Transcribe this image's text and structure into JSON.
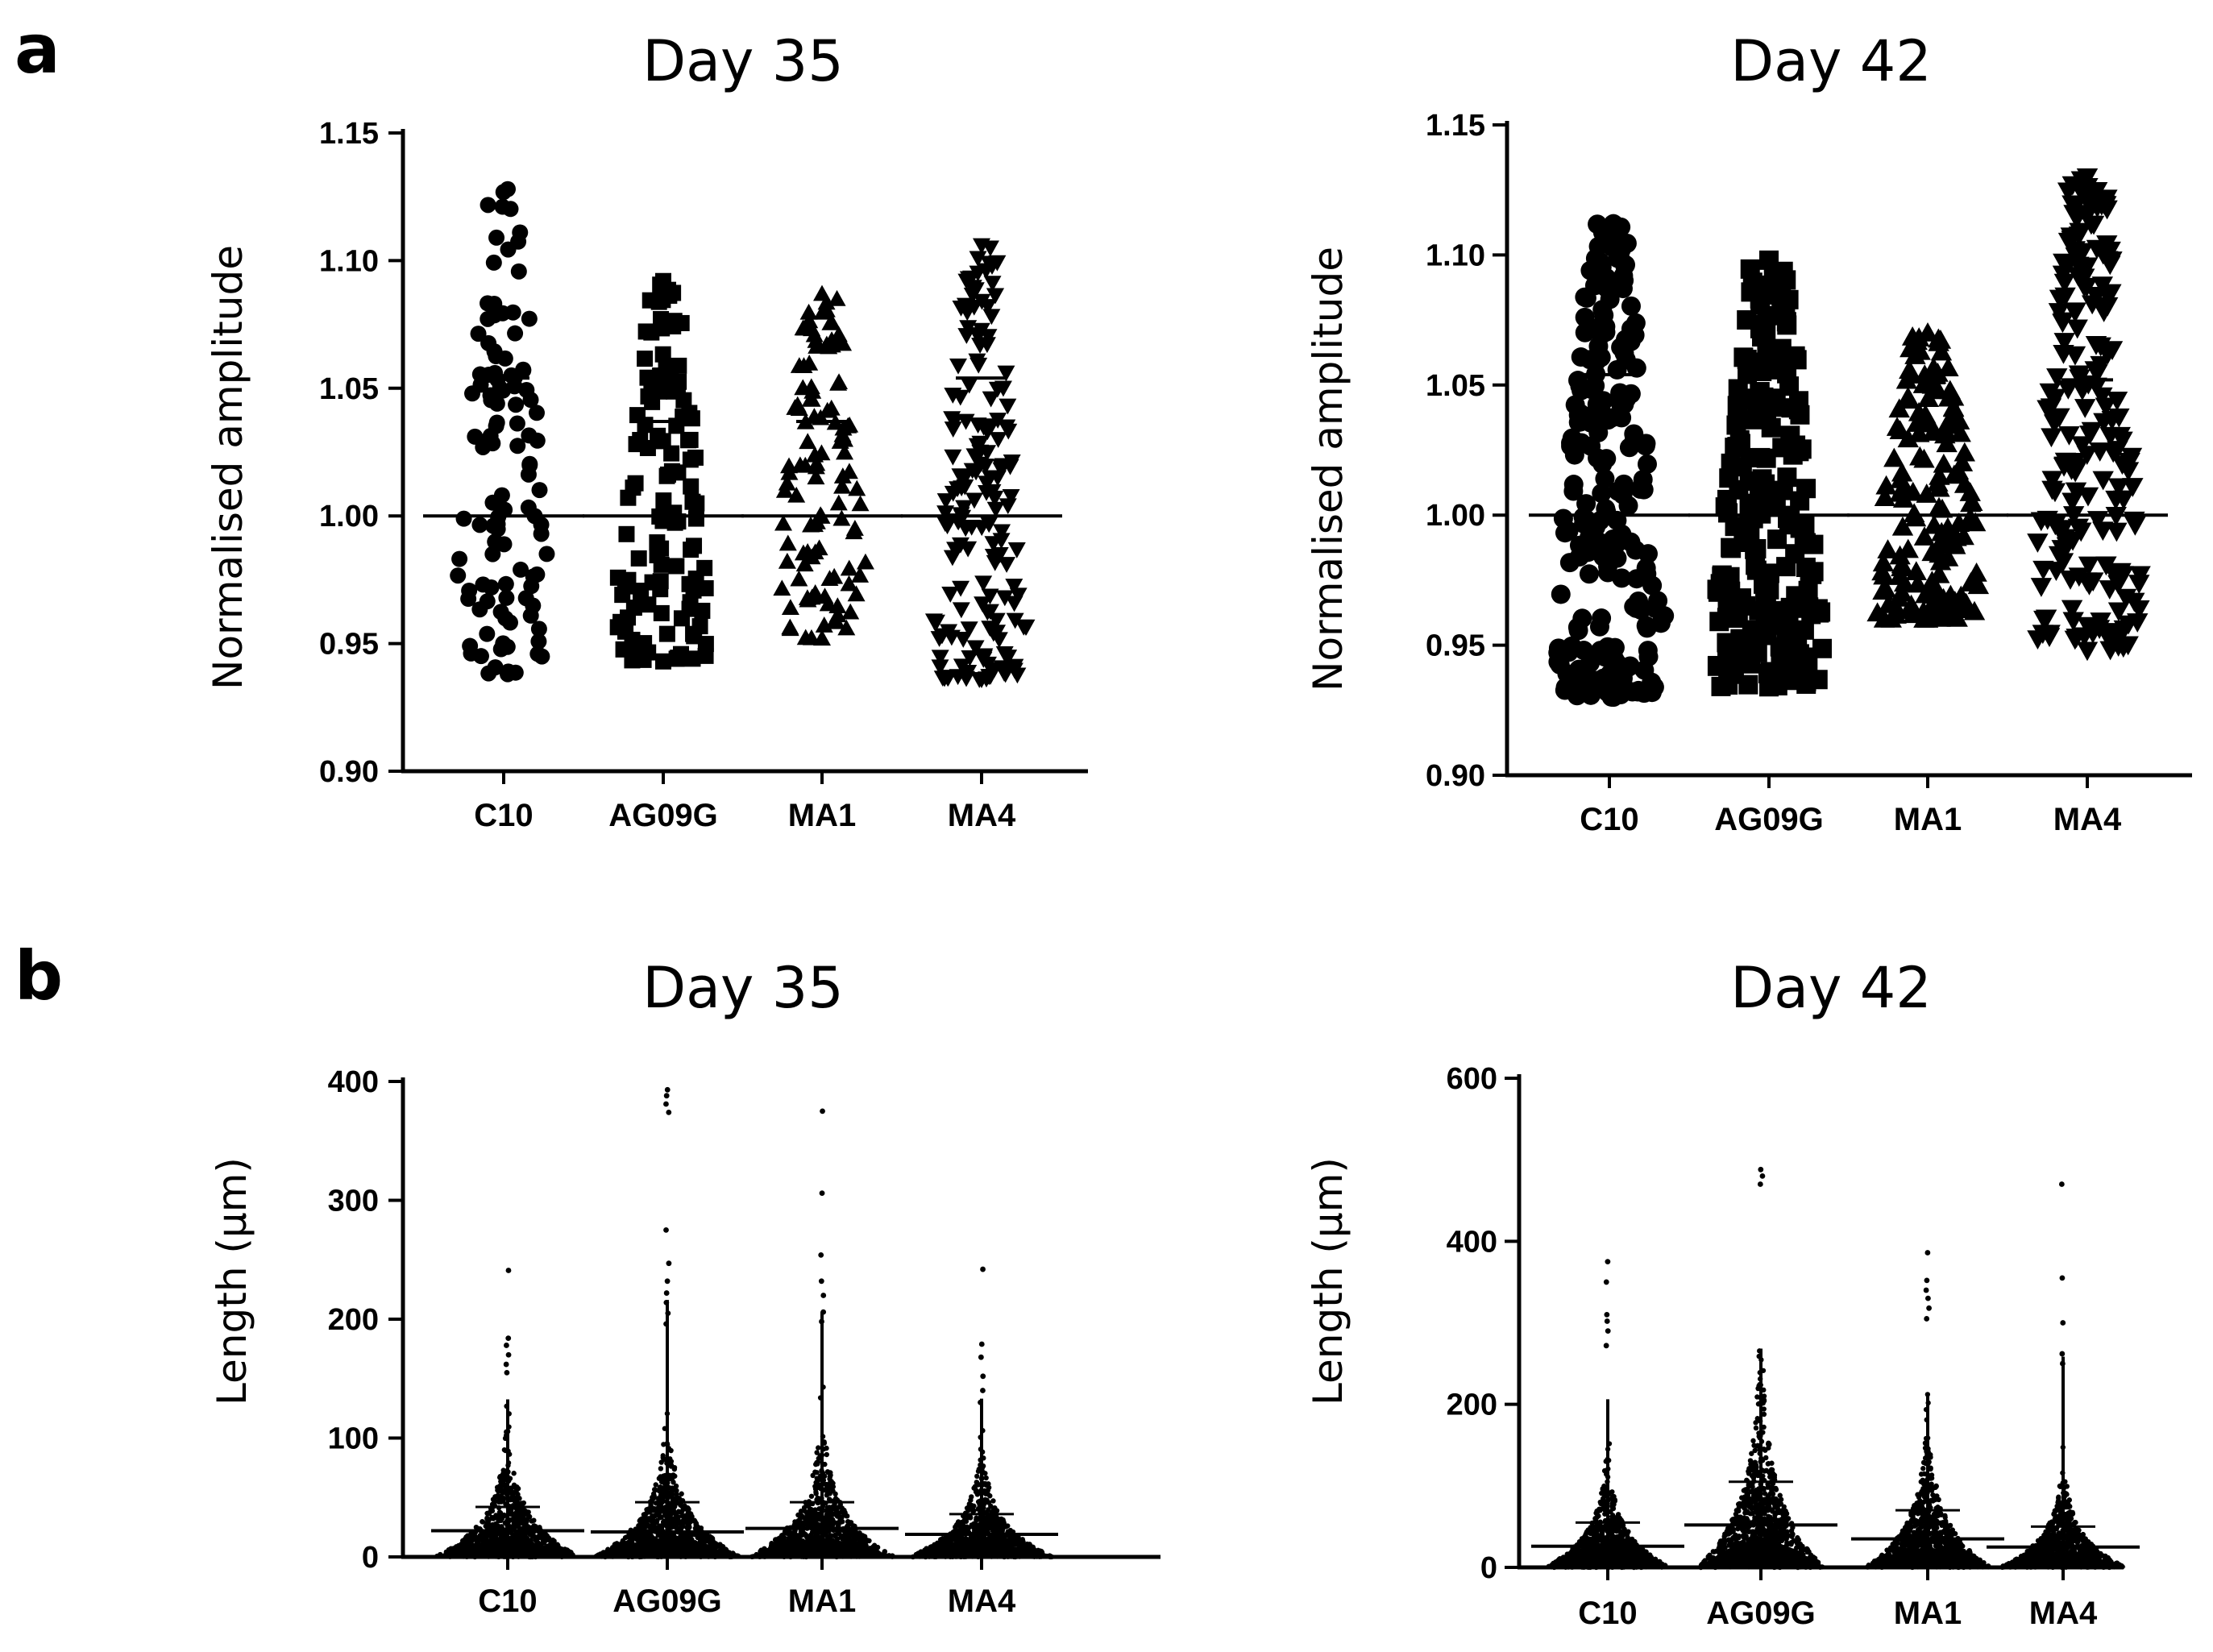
{
  "panel_labels": [
    "a",
    "b"
  ],
  "chart_data": [
    {
      "type": "scatter",
      "panel": "a",
      "title": "Day 35",
      "xlabel": "",
      "ylabel": "Normalised amplitude",
      "ylim": [
        0.9,
        1.15
      ],
      "yticks": [
        0.9,
        0.95,
        1.0,
        1.05,
        1.1,
        1.15
      ],
      "ytick_labels": [
        "0.90",
        "0.95",
        "1.00",
        "1.05",
        "1.10",
        "1.15"
      ],
      "categories": [
        "C10",
        "AG09G",
        "MA1",
        "MA4"
      ],
      "markers": [
        "circle",
        "square",
        "triangle-up",
        "triangle-down"
      ],
      "series": [
        {
          "name": "C10",
          "mean": 1.0,
          "sd_upper": 1.054,
          "min": 0.938,
          "max": 1.128,
          "n": 110
        },
        {
          "name": "AG09G",
          "mean": 1.0,
          "sd_upper": 1.037,
          "min": 0.943,
          "max": 1.092,
          "n": 120
        },
        {
          "name": "MA1",
          "mean": 1.0,
          "sd_upper": 1.037,
          "min": 0.952,
          "max": 1.087,
          "n": 110
        },
        {
          "name": "MA4",
          "mean": 1.0,
          "sd_upper": 1.054,
          "min": 0.936,
          "max": 1.106,
          "n": 170
        }
      ]
    },
    {
      "type": "scatter",
      "panel": "a",
      "title": "Day 42",
      "xlabel": "",
      "ylabel": "Normalised amplitude",
      "ylim": [
        0.9,
        1.15
      ],
      "yticks": [
        0.9,
        0.95,
        1.0,
        1.05,
        1.1,
        1.15
      ],
      "ytick_labels": [
        "0.90",
        "0.95",
        "1.00",
        "1.05",
        "1.10",
        "1.15"
      ],
      "categories": [
        "C10",
        "AG09G",
        "MA1",
        "MA4"
      ],
      "markers": [
        "circle",
        "square",
        "triangle-up",
        "triangle-down"
      ],
      "series": [
        {
          "name": "C10",
          "mean": 1.0,
          "sd_upper": 1.054,
          "min": 0.93,
          "max": 1.112,
          "n": 220
        },
        {
          "name": "AG09G",
          "mean": 1.0,
          "sd_upper": 1.048,
          "min": 0.934,
          "max": 1.098,
          "n": 220
        },
        {
          "name": "MA1",
          "mean": 1.0,
          "sd_upper": 1.03,
          "min": 0.96,
          "max": 1.07,
          "n": 160
        },
        {
          "name": "MA4",
          "mean": 1.0,
          "sd_upper": 1.052,
          "min": 0.948,
          "max": 1.13,
          "n": 200
        }
      ]
    },
    {
      "type": "scatter",
      "panel": "b",
      "title": "Day 35",
      "xlabel": "",
      "ylabel": "Length (μm)",
      "ylim": [
        0,
        400
      ],
      "yticks": [
        0,
        100,
        200,
        300,
        400
      ],
      "ytick_labels": [
        "0",
        "100",
        "200",
        "300",
        "400"
      ],
      "categories": [
        "C10",
        "AG09G",
        "MA1",
        "MA4"
      ],
      "series": [
        {
          "name": "C10",
          "mean": 22,
          "sd_upper": 42,
          "max": 241,
          "outliers": [
            241,
            184,
            178,
            170,
            162,
            155
          ]
        },
        {
          "name": "AG09G",
          "mean": 21,
          "sd_upper": 46,
          "max": 393,
          "outliers": [
            393,
            388,
            381,
            374,
            275,
            247,
            232,
            222,
            214,
            205,
            196
          ]
        },
        {
          "name": "MA1",
          "mean": 24,
          "sd_upper": 46,
          "max": 375,
          "outliers": [
            375,
            306,
            254,
            232,
            220,
            206,
            198
          ]
        },
        {
          "name": "MA4",
          "mean": 19,
          "sd_upper": 36,
          "max": 242,
          "outliers": [
            242,
            179,
            168,
            152,
            140,
            130
          ]
        }
      ]
    },
    {
      "type": "scatter",
      "panel": "b",
      "title": "Day 42",
      "xlabel": "",
      "ylabel": "Length (μm)",
      "ylim": [
        0,
        600
      ],
      "yticks": [
        0,
        200,
        400,
        600
      ],
      "ytick_labels": [
        "0",
        "200",
        "400",
        "600"
      ],
      "categories": [
        "C10",
        "AG09G",
        "MA1",
        "MA4"
      ],
      "series": [
        {
          "name": "C10",
          "mean": 26,
          "sd_upper": 55,
          "max": 375,
          "outliers": [
            375,
            350,
            310,
            302,
            290,
            272
          ]
        },
        {
          "name": "AG09G",
          "mean": 52,
          "sd_upper": 105,
          "max": 488,
          "outliers": [
            488,
            480,
            470
          ]
        },
        {
          "name": "MA1",
          "mean": 35,
          "sd_upper": 70,
          "max": 386,
          "outliers": [
            386,
            352,
            340,
            330,
            318,
            305
          ]
        },
        {
          "name": "MA4",
          "mean": 25,
          "sd_upper": 50,
          "max": 470,
          "outliers": [
            470,
            355,
            300,
            262,
            250
          ]
        }
      ]
    }
  ]
}
